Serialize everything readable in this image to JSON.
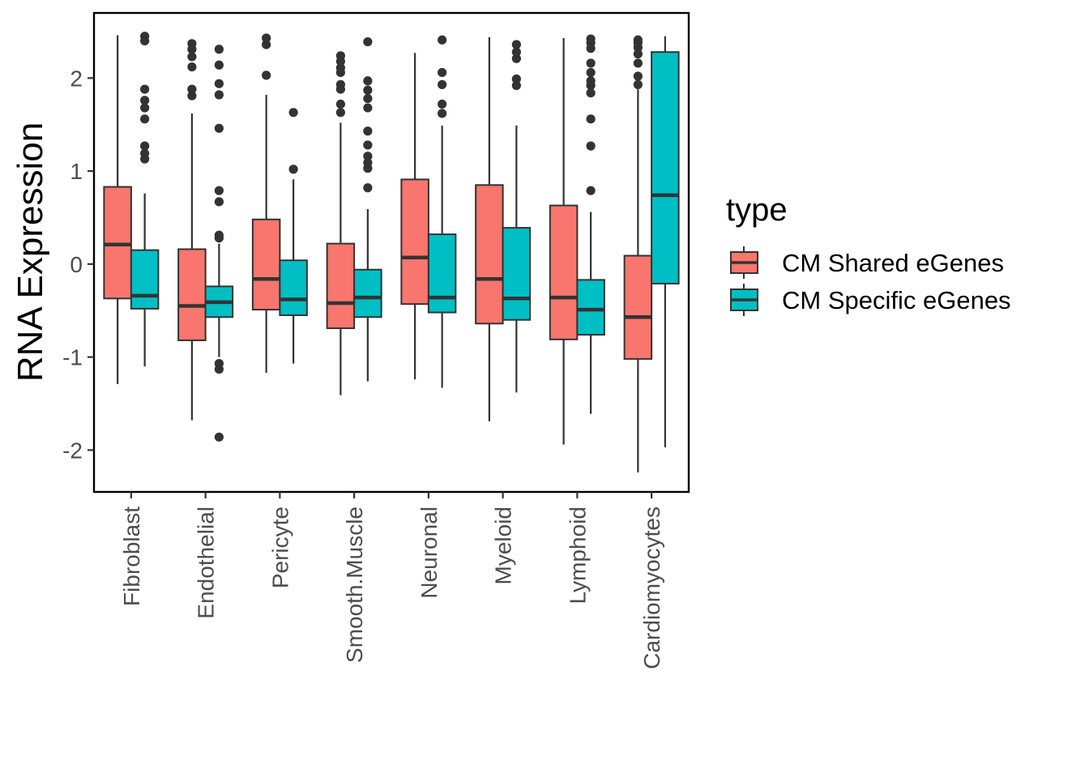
{
  "chart_data": {
    "type": "box",
    "xlabel": "",
    "ylabel": "RNA Expression",
    "ylim": [
      -2.45,
      2.7
    ],
    "yticks": [
      -2,
      -1,
      0,
      1,
      2
    ],
    "ytick_labels": [
      "-2",
      "-1",
      "0",
      "1",
      "2"
    ],
    "grid": false,
    "legend": {
      "title": "type",
      "position": "right"
    },
    "categories": [
      "Fibroblast",
      "Endothelial",
      "Pericyte",
      "Smooth.Muscle",
      "Neuronal",
      "Myeloid",
      "Lymphoid",
      "Cardiomyocytes"
    ],
    "series": [
      {
        "name": "CM Shared eGenes",
        "color": "#F8766D",
        "boxes": [
          {
            "whisker_low": -1.29,
            "q1": -0.37,
            "median": 0.21,
            "q3": 0.83,
            "whisker_high": 2.46,
            "outliers": []
          },
          {
            "whisker_low": -1.68,
            "q1": -0.82,
            "median": -0.45,
            "q3": 0.16,
            "whisker_high": 1.62,
            "outliers": [
              1.81,
              1.88,
              2.12,
              2.23,
              2.31,
              2.37
            ]
          },
          {
            "whisker_low": -1.17,
            "q1": -0.49,
            "median": -0.16,
            "q3": 0.48,
            "whisker_high": 1.82,
            "outliers": [
              2.03,
              2.36,
              2.43
            ]
          },
          {
            "whisker_low": -1.41,
            "q1": -0.69,
            "median": -0.42,
            "q3": 0.22,
            "whisker_high": 1.52,
            "outliers": [
              1.63,
              1.72,
              1.88,
              1.93,
              2.06,
              2.11,
              2.18,
              2.24
            ]
          },
          {
            "whisker_low": -1.24,
            "q1": -0.43,
            "median": 0.07,
            "q3": 0.91,
            "whisker_high": 2.27,
            "outliers": []
          },
          {
            "whisker_low": -1.69,
            "q1": -0.64,
            "median": -0.16,
            "q3": 0.85,
            "whisker_high": 2.44,
            "outliers": []
          },
          {
            "whisker_low": -1.94,
            "q1": -0.81,
            "median": -0.36,
            "q3": 0.63,
            "whisker_high": 2.43,
            "outliers": []
          },
          {
            "whisker_low": -2.24,
            "q1": -1.02,
            "median": -0.57,
            "q3": 0.09,
            "whisker_high": 1.88,
            "outliers": [
              1.93,
              2.02,
              2.16,
              2.26,
              2.33,
              2.38,
              2.41
            ]
          }
        ]
      },
      {
        "name": "CM Specific eGenes",
        "color": "#00BFC4",
        "boxes": [
          {
            "whisker_low": -1.1,
            "q1": -0.48,
            "median": -0.34,
            "q3": 0.15,
            "whisker_high": 0.76,
            "outliers": [
              1.13,
              1.19,
              1.27,
              1.56,
              1.68,
              1.76,
              1.88,
              2.4,
              2.45
            ]
          },
          {
            "whisker_low": -1.0,
            "q1": -0.57,
            "median": -0.41,
            "q3": -0.24,
            "whisker_high": 0.22,
            "outliers": [
              -1.86,
              -1.13,
              -1.07,
              0.28,
              0.31,
              0.67,
              0.79,
              1.46,
              1.82,
              1.94,
              2.14,
              2.31
            ]
          },
          {
            "whisker_low": -1.07,
            "q1": -0.55,
            "median": -0.38,
            "q3": 0.04,
            "whisker_high": 0.91,
            "outliers": [
              1.02,
              1.63
            ]
          },
          {
            "whisker_low": -1.26,
            "q1": -0.57,
            "median": -0.36,
            "q3": -0.06,
            "whisker_high": 0.59,
            "outliers": [
              0.82,
              1.03,
              1.09,
              1.16,
              1.28,
              1.43,
              1.68,
              1.78,
              1.87,
              1.97,
              2.39
            ]
          },
          {
            "whisker_low": -1.33,
            "q1": -0.52,
            "median": -0.36,
            "q3": 0.32,
            "whisker_high": 1.49,
            "outliers": [
              1.62,
              1.72,
              1.93,
              2.06,
              2.41
            ]
          },
          {
            "whisker_low": -1.38,
            "q1": -0.6,
            "median": -0.37,
            "q3": 0.39,
            "whisker_high": 1.49,
            "outliers": [
              1.92,
              1.99,
              2.21,
              2.28,
              2.36
            ]
          },
          {
            "whisker_low": -1.61,
            "q1": -0.76,
            "median": -0.49,
            "q3": -0.17,
            "whisker_high": 0.56,
            "outliers": [
              0.79,
              1.27,
              1.56,
              1.84,
              1.92,
              1.97,
              2.06,
              2.16,
              2.32,
              2.38,
              2.42
            ]
          },
          {
            "whisker_low": -1.97,
            "q1": -0.21,
            "median": 0.74,
            "q3": 2.28,
            "whisker_high": 2.45,
            "outliers": []
          }
        ]
      }
    ]
  }
}
